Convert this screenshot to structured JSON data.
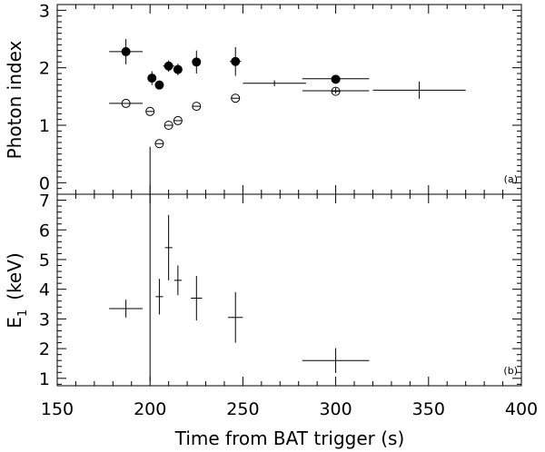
{
  "chart_data": [
    {
      "type": "scatter",
      "panel_label": "(a)",
      "ylabel": "Photon index",
      "ylim": [
        -0.2,
        3.1
      ],
      "yticks": [
        0,
        1,
        2,
        3
      ],
      "xlim": [
        150,
        400
      ],
      "series": [
        {
          "marker": "filled-circle",
          "points": [
            {
              "x": 187,
              "y": 2.28,
              "xerr": 9,
              "yerr": 0.22
            },
            {
              "x": 201,
              "y": 1.82,
              "xerr": 0,
              "yerr": 0.12
            },
            {
              "x": 205,
              "y": 1.7,
              "xerr": 0,
              "yerr": 0.05
            },
            {
              "x": 210,
              "y": 2.03,
              "xerr": 3,
              "yerr": 0.1
            },
            {
              "x": 215,
              "y": 1.97,
              "xerr": 2,
              "yerr": 0.1
            },
            {
              "x": 225,
              "y": 2.1,
              "xerr": 2,
              "yerr": 0.2
            },
            {
              "x": 246,
              "y": 2.11,
              "xerr": 3,
              "yerr": 0.25
            },
            {
              "x": 300,
              "y": 1.8,
              "xerr": 0,
              "yerr": 0.05
            }
          ]
        },
        {
          "marker": "open-circle",
          "points": [
            {
              "x": 187,
              "y": 1.38,
              "xerr": 9,
              "yerr": 0
            },
            {
              "x": 200,
              "y": 1.24,
              "xerr": 0,
              "yerr": 0
            },
            {
              "x": 205,
              "y": 0.68,
              "xerr": 0,
              "yerr": 0.05
            },
            {
              "x": 210,
              "y": 1.0,
              "xerr": 0,
              "yerr": 0
            },
            {
              "x": 215,
              "y": 1.08,
              "xerr": 0,
              "yerr": 0
            },
            {
              "x": 225,
              "y": 1.33,
              "xerr": 0,
              "yerr": 0
            },
            {
              "x": 246,
              "y": 1.47,
              "xerr": 0,
              "yerr": 0
            },
            {
              "x": 300,
              "y": 1.59,
              "xerr": 0,
              "yerr": 0
            }
          ]
        },
        {
          "marker": "cross",
          "points": [
            {
              "x": 267,
              "y": 1.73,
              "xerr": 17,
              "yerr": 0.05
            },
            {
              "x": 300,
              "y": 1.6,
              "xerr": 18,
              "yerr": 0.05
            },
            {
              "x": 300,
              "y": 1.81,
              "xerr": 18,
              "yerr": 0
            },
            {
              "x": 345,
              "y": 1.61,
              "xerr": 25,
              "yerr": 0.15
            }
          ]
        }
      ]
    },
    {
      "type": "scatter",
      "panel_label": "(b)",
      "ylabel_main": "E",
      "ylabel_sub": "1",
      "ylabel_unit": "(keV)",
      "ylim": [
        0.75,
        7.2
      ],
      "yticks": [
        1,
        2,
        3,
        4,
        5,
        6,
        7
      ],
      "xlim": [
        150,
        400
      ],
      "xticks": [
        150,
        200,
        250,
        300,
        350,
        400
      ],
      "xlabel": "Time from BAT trigger (s)",
      "series": [
        {
          "marker": "cross",
          "points": [
            {
              "x": 187,
              "y": 3.35,
              "xerr": 9,
              "yerr": 0.3
            },
            {
              "x": 200,
              "y": 4.85,
              "xerr": 0,
              "yerr": 3.95
            },
            {
              "x": 205,
              "y": 3.75,
              "xerr": 2,
              "yerr": 0.6
            },
            {
              "x": 210,
              "y": 5.4,
              "xerr": 2,
              "yerr": 1.1
            },
            {
              "x": 215,
              "y": 4.3,
              "xerr": 2,
              "yerr": 0.5
            },
            {
              "x": 225,
              "y": 3.7,
              "xerr": 3,
              "yerr": 0.75
            },
            {
              "x": 246,
              "y": 3.05,
              "xerr": 4,
              "yerr": 0.85
            },
            {
              "x": 300,
              "y": 1.6,
              "xerr": 18,
              "yerr": 0.42
            }
          ]
        }
      ]
    }
  ]
}
